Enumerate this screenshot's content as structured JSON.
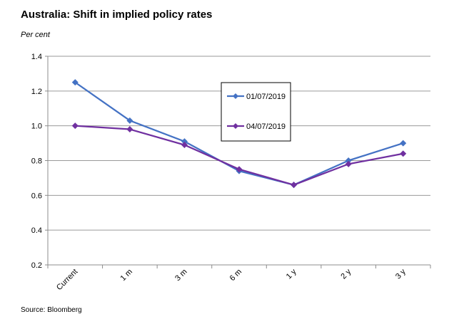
{
  "header": {
    "title": "Australia: Shift in implied policy rates",
    "unit_label": "Per cent"
  },
  "footer": {
    "source": "Source: Bloomberg"
  },
  "chart_data": {
    "type": "line",
    "title": "Australia: Shift in implied policy rates",
    "ylabel": "Per cent",
    "xlabel": "",
    "categories": [
      "Current",
      "1 m",
      "3 m",
      "6 m",
      "1 y",
      "2 y",
      "3 y"
    ],
    "ylim": [
      0.2,
      1.4
    ],
    "yticks": [
      "0.2",
      "0.4",
      "0.6",
      "0.8",
      "1.0",
      "1.2",
      "1.4"
    ],
    "grid": true,
    "legend_position": "center",
    "series": [
      {
        "name": "01/07/2019",
        "color": "#4472C4",
        "values": [
          1.25,
          1.03,
          0.91,
          0.74,
          0.66,
          0.8,
          0.9
        ]
      },
      {
        "name": "04/07/2019",
        "color": "#7030A0",
        "values": [
          1.0,
          0.98,
          0.89,
          0.75,
          0.66,
          0.78,
          0.84
        ]
      }
    ]
  }
}
